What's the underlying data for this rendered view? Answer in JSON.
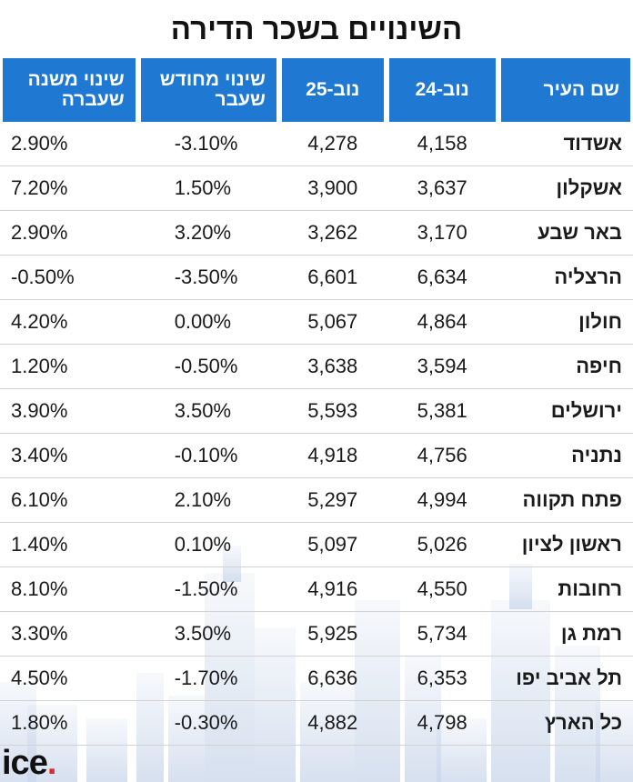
{
  "title": "השינויים בשכר הדירה",
  "columns": {
    "city": "שם העיר",
    "nov24": "נוב-24",
    "nov25": "נוב-25",
    "mom": "שינוי מחודש שעבר",
    "yoy": "שינוי משנה שעברה"
  },
  "rows": [
    {
      "city": "אשדוד",
      "nov24": "4,158",
      "nov25": "4,278",
      "mom": "-3.10%",
      "yoy": "2.90%"
    },
    {
      "city": "אשקלון",
      "nov24": "3,637",
      "nov25": "3,900",
      "mom": "1.50%",
      "yoy": "7.20%"
    },
    {
      "city": "באר שבע",
      "nov24": "3,170",
      "nov25": "3,262",
      "mom": "3.20%",
      "yoy": "2.90%"
    },
    {
      "city": "הרצליה",
      "nov24": "6,634",
      "nov25": "6,601",
      "mom": "-3.50%",
      "yoy": "-0.50%"
    },
    {
      "city": "חולון",
      "nov24": "4,864",
      "nov25": "5,067",
      "mom": "0.00%",
      "yoy": "4.20%"
    },
    {
      "city": "חיפה",
      "nov24": "3,594",
      "nov25": "3,638",
      "mom": "-0.50%",
      "yoy": "1.20%"
    },
    {
      "city": "ירושלים",
      "nov24": "5,381",
      "nov25": "5,593",
      "mom": "3.50%",
      "yoy": "3.90%"
    },
    {
      "city": "נתניה",
      "nov24": "4,756",
      "nov25": "4,918",
      "mom": "-0.10%",
      "yoy": "3.40%"
    },
    {
      "city": "פתח תקווה",
      "nov24": "4,994",
      "nov25": "5,297",
      "mom": "2.10%",
      "yoy": "6.10%"
    },
    {
      "city": "ראשון לציון",
      "nov24": "5,026",
      "nov25": "5,097",
      "mom": "0.10%",
      "yoy": "1.40%"
    },
    {
      "city": "רחובות",
      "nov24": "4,550",
      "nov25": "4,916",
      "mom": "-1.50%",
      "yoy": "8.10%"
    },
    {
      "city": "רמת גן",
      "nov24": "5,734",
      "nov25": "5,925",
      "mom": "3.50%",
      "yoy": "3.30%"
    },
    {
      "city": "תל אביב יפו",
      "nov24": "6,353",
      "nov25": "6,636",
      "mom": "-1.70%",
      "yoy": "4.50%"
    },
    {
      "city": "כל הארץ",
      "nov24": "4,798",
      "nov25": "4,882",
      "mom": "-0.30%",
      "yoy": "1.80%"
    }
  ],
  "logo": {
    "text": "ice",
    "dot": "."
  },
  "colors": {
    "header": "#1f78d1",
    "logo_dot": "#e3262f",
    "skyline": "#c9d6ea"
  }
}
